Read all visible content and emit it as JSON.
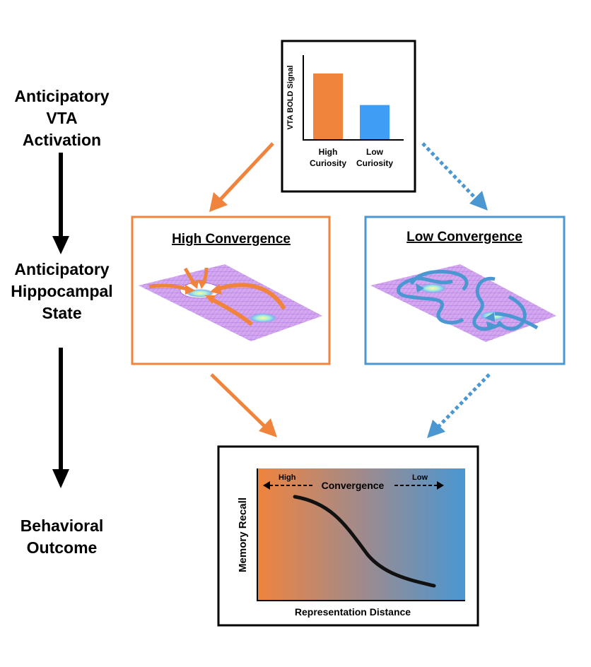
{
  "stages": {
    "vta": [
      "Anticipatory",
      "VTA",
      "Activation"
    ],
    "hippocampal": [
      "Anticipatory",
      "Hippocampal",
      "State"
    ],
    "behavior": [
      "Behavioral",
      "Outcome"
    ]
  },
  "colors": {
    "high": "#f0843d",
    "low": "#4a97d2",
    "low_bar": "#3f9df5",
    "arrow": "#000000"
  },
  "bar_panel": {
    "ylabel": "VTA BOLD Signal",
    "bars": [
      {
        "label_line1": "High",
        "label_line2": "Curiosity",
        "value": 1.0
      },
      {
        "label_line1": "Low",
        "label_line2": "Curiosity",
        "value": 0.52
      }
    ]
  },
  "high_panel": {
    "title": "High Convergence"
  },
  "low_panel": {
    "title": "Low Convergence"
  },
  "outcome_panel": {
    "ylabel": "Memory Recall",
    "xlabel": "Representation Distance",
    "convergence_label": "Convergence",
    "high_label": "High",
    "low_label": "Low"
  }
}
